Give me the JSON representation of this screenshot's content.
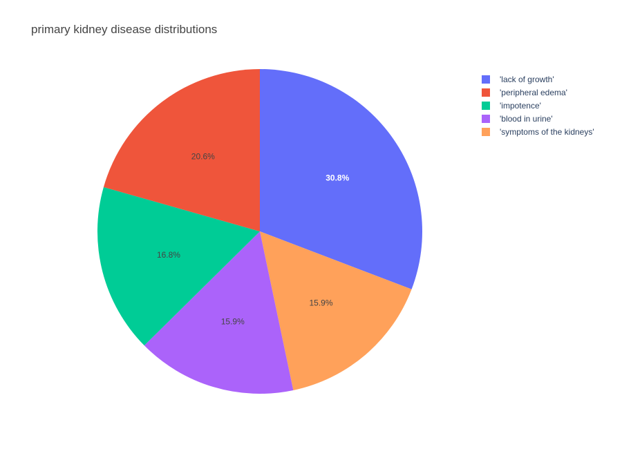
{
  "chart_data": {
    "type": "pie",
    "title": "primary kidney disease distributions",
    "labels": [
      "'lack of growth'",
      "'peripheral edema'",
      "'impotence'",
      "'blood in urine'",
      "'symptoms of the kidneys'"
    ],
    "values": [
      30.8,
      20.6,
      16.8,
      15.9,
      15.9
    ],
    "percent_labels": [
      "30.8%",
      "20.6%",
      "16.8%",
      "15.9%",
      "15.9%"
    ],
    "colors": [
      "#636efa",
      "#EF553B",
      "#00cc96",
      "#ab63fa",
      "#FFA15A"
    ],
    "slice_order": [
      0,
      4,
      3,
      2,
      1
    ],
    "direction": "clockwise",
    "legend_position": "top-right"
  }
}
